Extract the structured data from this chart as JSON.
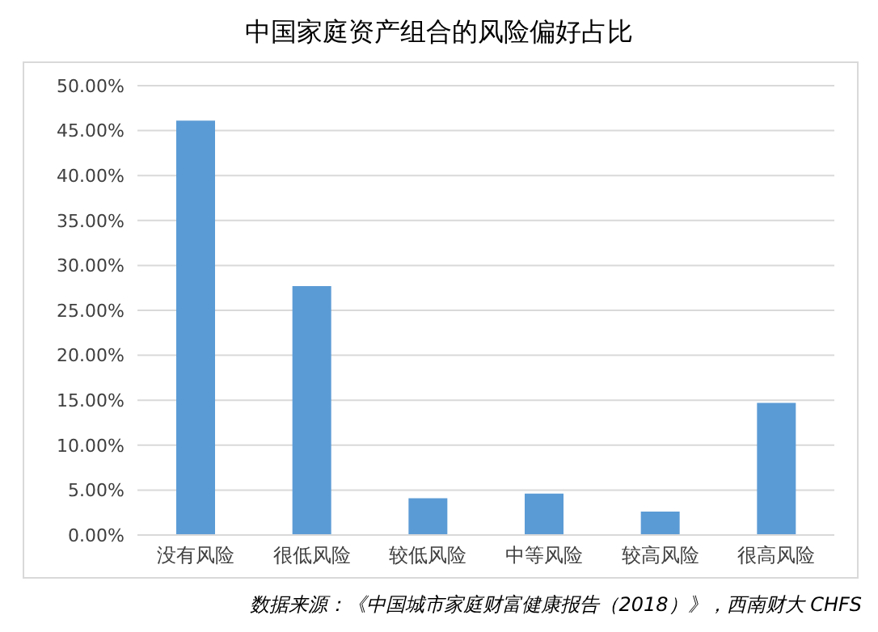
{
  "chart_data": {
    "type": "bar",
    "title": "中国家庭资产组合的风险偏好占比",
    "categories": [
      "没有风险",
      "很低风险",
      "较低风险",
      "中等风险",
      "较高风险",
      "很高风险"
    ],
    "values": [
      46.1,
      27.7,
      4.1,
      4.6,
      2.6,
      14.7
    ],
    "color": "#5b9bd5",
    "ylim": [
      0,
      50
    ],
    "yticks": [
      {
        "value": 0,
        "label": "0.00%"
      },
      {
        "value": 5,
        "label": "5.00%"
      },
      {
        "value": 10,
        "label": "10.00%"
      },
      {
        "value": 15,
        "label": "15.00%"
      },
      {
        "value": 20,
        "label": "20.00%"
      },
      {
        "value": 25,
        "label": "25.00%"
      },
      {
        "value": 30,
        "label": "30.00%"
      },
      {
        "value": 35,
        "label": "35.00%"
      },
      {
        "value": 40,
        "label": "40.00%"
      },
      {
        "value": 45,
        "label": "45.00%"
      },
      {
        "value": 50,
        "label": "50.00%"
      }
    ],
    "grid": "y",
    "legend": false,
    "annotations": [
      "数据来源：《中国城市家庭财富健康报告（2018）》，西南财大 CHFS"
    ]
  }
}
